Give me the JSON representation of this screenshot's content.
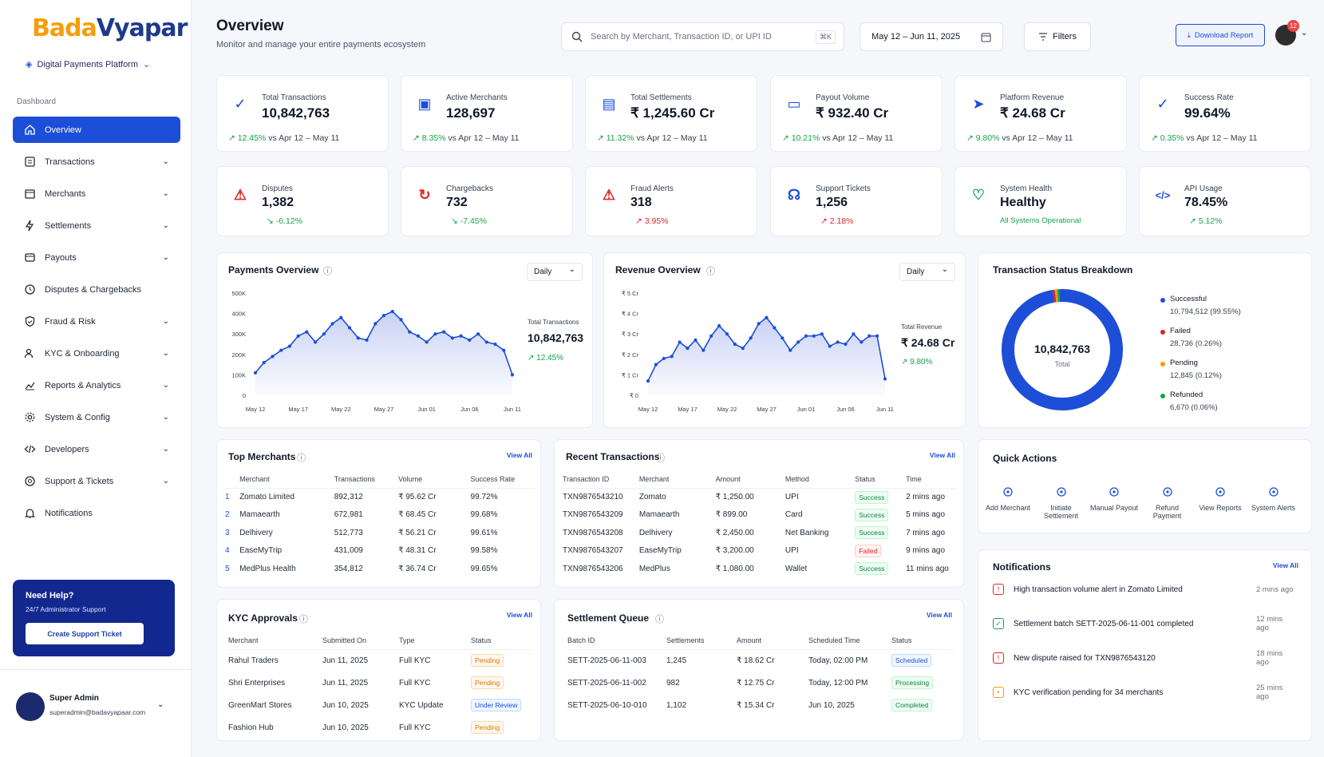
{
  "brand": {
    "logo_a": "Bada",
    "logo_b": "Vyapar",
    "platform": "Digital Payments Platform"
  },
  "sidebar": {
    "section": "Dashboard",
    "items": [
      {
        "label": "Overview",
        "icon": "home-icon"
      },
      {
        "label": "Transactions",
        "icon": "receipt-icon"
      },
      {
        "label": "Merchants",
        "icon": "store-icon"
      },
      {
        "label": "Settlements",
        "icon": "bolt-icon"
      },
      {
        "label": "Payouts",
        "icon": "wallet-icon"
      },
      {
        "label": "Disputes & Chargebacks",
        "icon": "clock-icon"
      },
      {
        "label": "Fraud & Risk",
        "icon": "shield-icon"
      },
      {
        "label": "KYC & Onboarding",
        "icon": "users-icon"
      },
      {
        "label": "Reports & Analytics",
        "icon": "chart-icon"
      },
      {
        "label": "System & Config",
        "icon": "gear-icon"
      },
      {
        "label": "Developers",
        "icon": "code-icon"
      },
      {
        "label": "Support & Tickets",
        "icon": "help-icon"
      },
      {
        "label": "Notifications",
        "icon": "bell-icon"
      }
    ],
    "help": {
      "title": "Need Help?",
      "subtitle": "24/7 Administrator Support",
      "button": "Create Support Ticket"
    },
    "user": {
      "name": "Super Admin",
      "email": "superadmin@badavyapaar.com"
    }
  },
  "header": {
    "title": "Overview",
    "subtitle": "Monitor and manage your entire payments ecosystem",
    "search_placeholder": "Search by Merchant, Transaction ID, or UPI ID",
    "shortcut": "⌘K",
    "date_range": "May 12  –  Jun 11, 2025",
    "filters": "Filters",
    "download": "Download Report",
    "notif_count": "12"
  },
  "kpis": [
    {
      "label": "Total Transactions",
      "value": "10,842,763",
      "delta": "↗ 12.45%",
      "cmp": " vs Apr 12 – May 11"
    },
    {
      "label": "Active Merchants",
      "value": "128,697",
      "delta": "↗ 8.35%",
      "cmp": " vs Apr 12 – May 11"
    },
    {
      "label": "Total Settlements",
      "value": "₹ 1,245.60 Cr",
      "delta": "↗ 11.32%",
      "cmp": " vs Apr 12 – May 11"
    },
    {
      "label": "Payout Volume",
      "value": "₹ 932.40 Cr",
      "delta": "↗ 10.21%",
      "cmp": " vs Apr 12 – May 11"
    },
    {
      "label": "Platform Revenue",
      "value": "₹ 24.68 Cr",
      "delta": "↗ 9.80%",
      "cmp": " vs Apr 12 – May 11"
    },
    {
      "label": "Success Rate",
      "value": "99.64%",
      "delta": "↗ 0.35%",
      "cmp": " vs Apr 12 – May 11"
    }
  ],
  "kpis2": [
    {
      "label": "Disputes",
      "value": "1,382",
      "delta": "↘ -6.12%"
    },
    {
      "label": "Chargebacks",
      "value": "732",
      "delta": "↘ -7.45%"
    },
    {
      "label": "Fraud Alerts",
      "value": "318",
      "delta": "↗ 3.95%"
    },
    {
      "label": "Support Tickets",
      "value": "1,256",
      "delta": "↗ 2.18%"
    },
    {
      "label": "System Health",
      "value": "Healthy",
      "delta": "All Systems Operational"
    },
    {
      "label": "API Usage",
      "value": "78.45%",
      "delta": "↗ 5.12%"
    }
  ],
  "payments": {
    "title": "Payments Overview",
    "period": "Daily",
    "sum_label": "Total Transactions",
    "sum_value": "10,842,763",
    "sum_delta": "↗ 12.45%",
    "yticks": [
      "500K",
      "400K",
      "300K",
      "200K",
      "100K",
      "0"
    ],
    "xticks": [
      "May 12",
      "May 17",
      "May 22",
      "May 27",
      "Jun 01",
      "Jun 06",
      "Jun 11"
    ]
  },
  "revenue": {
    "title": "Revenue Overview",
    "period": "Daily",
    "sum_label": "Total Revenue",
    "sum_value": "₹ 24.68 Cr",
    "sum_delta": "↗ 9.80%",
    "yticks": [
      "₹ 5 Cr",
      "₹ 4 Cr",
      "₹ 3 Cr",
      "₹ 2 Cr",
      "₹ 1 Cr",
      "₹ 0"
    ],
    "xticks": [
      "May 12",
      "May 17",
      "May 22",
      "May 27",
      "Jun 01",
      "Jun 06",
      "Jun 11"
    ]
  },
  "chart_data": [
    {
      "type": "area",
      "title": "Payments Overview",
      "ylim": [
        0,
        500000
      ],
      "x": [
        "May 12",
        "",
        "",
        "",
        "",
        "May 17",
        "",
        "",
        "",
        "",
        "May 22",
        "",
        "",
        "",
        "",
        "May 27",
        "",
        "",
        "",
        "",
        "Jun 01",
        "",
        "",
        "",
        "",
        "Jun 06",
        "",
        "",
        "",
        "",
        "Jun 11"
      ],
      "series": [
        {
          "name": "",
          "values": [
            110000,
            160000,
            190000,
            220000,
            240000,
            290000,
            310000,
            260000,
            300000,
            350000,
            380000,
            330000,
            280000,
            270000,
            350000,
            390000,
            410000,
            370000,
            310000,
            290000,
            260000,
            300000,
            310000,
            280000,
            290000,
            270000,
            300000,
            260000,
            250000,
            220000,
            100000
          ]
        }
      ]
    },
    {
      "type": "area",
      "title": "Revenue Overview",
      "ylim": [
        0,
        5
      ],
      "x": [
        "May 12",
        "",
        "",
        "",
        "",
        "May 17",
        "",
        "",
        "",
        "",
        "May 22",
        "",
        "",
        "",
        "",
        "May 27",
        "",
        "",
        "",
        "",
        "Jun 01",
        "",
        "",
        "",
        "",
        "Jun 06",
        "",
        "",
        "",
        "",
        "Jun 11"
      ],
      "series": [
        {
          "name": "",
          "values": [
            0.7,
            1.5,
            1.8,
            1.9,
            2.6,
            2.3,
            2.7,
            2.2,
            2.9,
            3.4,
            3.0,
            2.5,
            2.3,
            2.8,
            3.5,
            3.8,
            3.3,
            2.8,
            2.2,
            2.6,
            2.9,
            2.9,
            3.0,
            2.4,
            2.6,
            2.5,
            3.0,
            2.6,
            2.9,
            2.9,
            0.8
          ]
        }
      ]
    },
    {
      "type": "pie",
      "title": "Transaction Status Breakdown",
      "total": "10,842,763",
      "total_label": "Total",
      "categories": [
        "Successful",
        "Failed",
        "Pending",
        "Refunded"
      ],
      "values": [
        10794512,
        28736,
        12845,
        6670
      ],
      "pct": [
        "99.55%",
        "0.26%",
        "0.12%",
        "0.06%"
      ],
      "colors": [
        "#1d4ed8",
        "#dc2626",
        "#f59e0b",
        "#16a34a"
      ]
    }
  ],
  "donut": {
    "title": "Transaction Status Breakdown",
    "total": "10,842,763",
    "total_label": "Total",
    "legend": [
      {
        "name": "Successful",
        "sub": "10,794,512 (99.55%)",
        "color": "#1d4ed8"
      },
      {
        "name": "Failed",
        "sub": "28,736 (0.26%)",
        "color": "#dc2626"
      },
      {
        "name": "Pending",
        "sub": "12,845 (0.12%)",
        "color": "#f59e0b"
      },
      {
        "name": "Refunded",
        "sub": "6,670 (0.06%)",
        "color": "#16a34a"
      }
    ]
  },
  "top_merchants": {
    "title": "Top Merchants",
    "view_all": "View All",
    "cols": [
      "Merchant",
      "Transactions",
      "Volume",
      "Success Rate"
    ],
    "rows": [
      [
        "1",
        "Zomato Limited",
        "892,312",
        "₹ 95.62 Cr",
        "99.72%"
      ],
      [
        "2",
        "Mamaearth",
        "672,981",
        "₹ 68.45 Cr",
        "99.68%"
      ],
      [
        "3",
        "Delhivery",
        "512,773",
        "₹ 56.21 Cr",
        "99.61%"
      ],
      [
        "4",
        "EaseMyTrip",
        "431,009",
        "₹ 48.31 Cr",
        "99.58%"
      ],
      [
        "5",
        "MedPlus Health",
        "354,812",
        "₹ 36.74 Cr",
        "99.65%"
      ]
    ]
  },
  "recent": {
    "title": "Recent Transactions",
    "view_all": "View All",
    "cols": [
      "Transaction ID",
      "Merchant",
      "Amount",
      "Method",
      "Status",
      "Time"
    ],
    "rows": [
      [
        "TXN9876543210",
        "Zomato",
        "₹ 1,250.00",
        "UPI",
        "Success",
        "2 mins ago"
      ],
      [
        "TXN9876543209",
        "Mamaearth",
        "₹ 899.00",
        "Card",
        "Success",
        "5 mins ago"
      ],
      [
        "TXN9876543208",
        "Delhivery",
        "₹ 2,450.00",
        "Net Banking",
        "Success",
        "7 mins ago"
      ],
      [
        "TXN9876543207",
        "EaseMyTrip",
        "₹ 3,200.00",
        "UPI",
        "Failed",
        "9 mins ago"
      ],
      [
        "TXN9876543206",
        "MedPlus",
        "₹ 1,080.00",
        "Wallet",
        "Success",
        "11 mins ago"
      ]
    ]
  },
  "kyc": {
    "title": "KYC Approvals",
    "view_all": "View All",
    "cols": [
      "Merchant",
      "Submitted On",
      "Type",
      "Status"
    ],
    "rows": [
      [
        "Rahul Traders",
        "Jun 11, 2025",
        "Full KYC",
        "Pending"
      ],
      [
        "Shri Enterprises",
        "Jun 11, 2025",
        "Full KYC",
        "Pending"
      ],
      [
        "GreenMart Stores",
        "Jun 10, 2025",
        "KYC Update",
        "Under Review"
      ],
      [
        "Fashion Hub",
        "Jun 10, 2025",
        "Full KYC",
        "Pending"
      ]
    ]
  },
  "settle": {
    "title": "Settlement Queue",
    "view_all": "View All",
    "cols": [
      "Batch ID",
      "Settlements",
      "Amount",
      "Scheduled Time",
      "Status"
    ],
    "rows": [
      [
        "SETT-2025-06-11-003",
        "1,245",
        "₹ 18.62 Cr",
        "Today, 02:00 PM",
        "Scheduled"
      ],
      [
        "SETT-2025-06-11-002",
        "982",
        "₹ 12.75 Cr",
        "Today, 12:00 PM",
        "Processing"
      ],
      [
        "SETT-2025-06-10-010",
        "1,102",
        "₹ 15.34 Cr",
        "Jun 10, 2025",
        "Completed"
      ]
    ]
  },
  "quick": {
    "title": "Quick Actions",
    "items": [
      {
        "label": "Add Merchant",
        "icon": "user-add-icon"
      },
      {
        "label": "Initiate Settlement",
        "icon": "drop-icon"
      },
      {
        "label": "Manual Payout",
        "icon": "payout-icon"
      },
      {
        "label": "Refund Payment",
        "icon": "refresh-icon"
      },
      {
        "label": "View Reports",
        "icon": "report-icon"
      },
      {
        "label": "System Alerts",
        "icon": "alert-bell-icon"
      }
    ]
  },
  "notifications": {
    "title": "Notifications",
    "view_all": "View All",
    "items": [
      {
        "text": "High transaction volume alert in Zomato Limited",
        "time": "2 mins ago",
        "color": "#dc2626",
        "icon": "warning-icon"
      },
      {
        "text": "Settlement batch SETT-2025-06-11-001 completed",
        "time": "12 mins ago",
        "color": "#16a34a",
        "icon": "check-icon"
      },
      {
        "text": "New dispute raised for TXN9876543120",
        "time": "18 mins ago",
        "color": "#dc2626",
        "icon": "warning-icon"
      },
      {
        "text": "KYC verification pending for 34 merchants",
        "time": "25 mins ago",
        "color": "#f59e0b",
        "icon": "pending-icon"
      }
    ]
  }
}
